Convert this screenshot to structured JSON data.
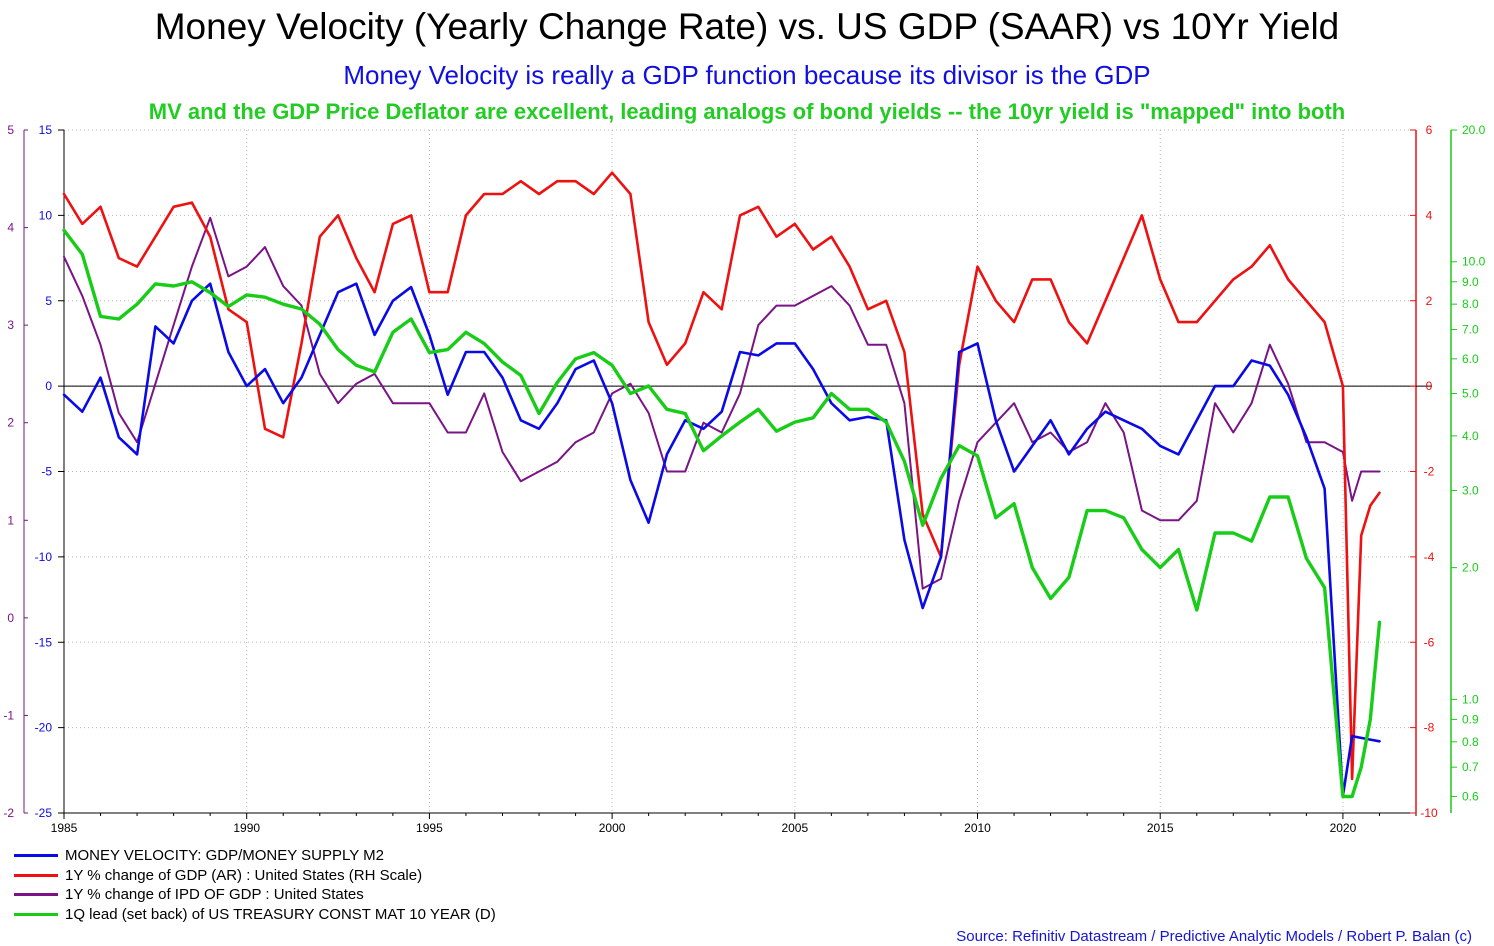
{
  "title": "Money Velocity (Yearly Change Rate) vs. US GDP (SAAR) vs 10Yr Yield",
  "subtitle": "Money Velocity is really a GDP function because its divisor is the GDP",
  "subtitle2": "MV and the GDP Price Deflator are excellent, leading analogs of bond yields -- the 10yr yield is \"mapped\" into both",
  "source": "Source: Refinitiv Datastream / Predictive Analytic Models / Robert P. Balan (c)",
  "colors": {
    "mv": "#0a0ae6",
    "gdp": "#ee1111",
    "ipd": "#7a1486",
    "yield": "#18cc18"
  },
  "chart_data": {
    "type": "line",
    "x_range": [
      1985,
      2022
    ],
    "x_ticks": [
      "1985",
      "1990",
      "1995",
      "2000",
      "2005",
      "2010",
      "2015",
      "2020"
    ],
    "axes": {
      "ipd_left": {
        "range": [
          -2,
          5
        ],
        "ticks": [
          "5",
          "4",
          "3",
          "2",
          "1",
          "0",
          "-1",
          "-2"
        ]
      },
      "mv_left": {
        "range": [
          -25,
          15
        ],
        "ticks": [
          "15",
          "10",
          "5",
          "0",
          "-5",
          "-10",
          "-15",
          "-20",
          "-25"
        ]
      },
      "gdp_right": {
        "range": [
          -10,
          6
        ],
        "ticks": [
          "6",
          "4",
          "2",
          "0",
          "-2",
          "-4",
          "-6",
          "-8",
          "-10"
        ]
      },
      "yield_right": {
        "scale": "log",
        "range": [
          0.55,
          20
        ],
        "ticks": [
          "20.0",
          "10.0",
          "9.0",
          "8.0",
          "7.0",
          "6.0",
          "5.0",
          "4.0",
          "3.0",
          "2.0",
          "1.0",
          "0.9",
          "0.8",
          "0.7",
          "0.6"
        ]
      }
    },
    "zero_line": true,
    "legend": [
      "MONEY VELOCITY: GDP/MONEY SUPPLY M2",
      "1Y % change of GDP (AR) : United States (RH Scale)",
      "1Y % change of IPD OF GDP : United States",
      "1Q lead (set back) of US TREASURY CONST MAT 10 YEAR (D)"
    ],
    "series": [
      {
        "key": "mv",
        "name": "MONEY VELOCITY: GDP/MONEY SUPPLY M2",
        "axis": "mv_left",
        "x": [
          1985,
          1985.5,
          1986,
          1986.5,
          1987,
          1987.5,
          1988,
          1988.5,
          1989,
          1989.5,
          1990,
          1990.5,
          1991,
          1991.5,
          1992,
          1992.5,
          1993,
          1993.5,
          1994,
          1994.5,
          1995,
          1995.5,
          1996,
          1996.5,
          1997,
          1997.5,
          1998,
          1998.5,
          1999,
          1999.5,
          2000,
          2000.5,
          2001,
          2001.5,
          2002,
          2002.5,
          2003,
          2003.5,
          2004,
          2004.5,
          2005,
          2005.5,
          2006,
          2006.5,
          2007,
          2007.5,
          2008,
          2008.5,
          2009,
          2009.5,
          2010,
          2010.5,
          2011,
          2011.5,
          2012,
          2012.5,
          2013,
          2013.5,
          2014,
          2014.5,
          2015,
          2015.5,
          2016,
          2016.5,
          2017,
          2017.5,
          2018,
          2018.5,
          2019,
          2019.5,
          2020,
          2020.25,
          2020.5,
          2020.75,
          2021
        ],
        "y": [
          -0.5,
          -1.5,
          0.5,
          -3,
          -4,
          3.5,
          2.5,
          5,
          6,
          2,
          0,
          1,
          -1,
          0.5,
          3,
          5.5,
          6,
          3,
          5,
          5.8,
          3,
          -0.5,
          2,
          2,
          0.5,
          -2,
          -2.5,
          -1,
          1,
          1.5,
          -1,
          -5.5,
          -8,
          -4,
          -2,
          -2.5,
          -1.5,
          2,
          1.8,
          2.5,
          2.5,
          1,
          -1,
          -2,
          -1.8,
          -2,
          -9,
          -13,
          -10,
          2,
          2.5,
          -2,
          -5,
          -3.5,
          -2,
          -4,
          -2.5,
          -1.5,
          -2,
          -2.5,
          -3.5,
          -4,
          -2,
          0,
          0,
          1.5,
          1.2,
          -0.5,
          -3,
          -6,
          -24,
          -20.5,
          -20.6,
          -20.7,
          -20.8
        ]
      },
      {
        "key": "gdp",
        "name": "1Y % change of GDP (AR) : United States (RH Scale)",
        "axis": "gdp_right",
        "x": [
          1985,
          1985.5,
          1986,
          1986.5,
          1987,
          1987.5,
          1988,
          1988.5,
          1989,
          1989.5,
          1990,
          1990.5,
          1991,
          1991.5,
          1992,
          1992.5,
          1993,
          1993.5,
          1994,
          1994.5,
          1995,
          1995.5,
          1996,
          1996.5,
          1997,
          1997.5,
          1998,
          1998.5,
          1999,
          1999.5,
          2000,
          2000.5,
          2001,
          2001.5,
          2002,
          2002.5,
          2003,
          2003.5,
          2004,
          2004.5,
          2005,
          2005.5,
          2006,
          2006.5,
          2007,
          2007.5,
          2008,
          2008.5,
          2009,
          2009.5,
          2010,
          2010.5,
          2011,
          2011.5,
          2012,
          2012.5,
          2013,
          2013.5,
          2014,
          2014.5,
          2015,
          2015.5,
          2016,
          2016.5,
          2017,
          2017.5,
          2018,
          2018.5,
          2019,
          2019.5,
          2020,
          2020.25,
          2020.5,
          2020.75,
          2021
        ],
        "y": [
          4.5,
          3.8,
          4.2,
          3,
          2.8,
          3.5,
          4.2,
          4.3,
          3.5,
          1.8,
          1.5,
          -1,
          -1.2,
          1,
          3.5,
          4,
          3,
          2.2,
          3.8,
          4,
          2.2,
          2.2,
          4,
          4.5,
          4.5,
          4.8,
          4.5,
          4.8,
          4.8,
          4.5,
          5,
          4.5,
          1.5,
          0.5,
          1,
          2.2,
          1.8,
          4,
          4.2,
          3.5,
          3.8,
          3.2,
          3.5,
          2.8,
          1.8,
          2,
          0.8,
          -3,
          -4,
          0.5,
          2.8,
          2,
          1.5,
          2.5,
          2.5,
          1.5,
          1,
          2,
          3,
          4,
          2.5,
          1.5,
          1.5,
          2,
          2.5,
          2.8,
          3.3,
          2.5,
          2,
          1.5,
          0,
          -9.2,
          -3.5,
          -2.8,
          -2.5
        ]
      },
      {
        "key": "ipd",
        "name": "1Y % change of IPD OF GDP : United States",
        "axis": "ipd_left",
        "x": [
          1985,
          1985.5,
          1986,
          1986.5,
          1987,
          1987.5,
          1988,
          1988.5,
          1989,
          1989.5,
          1990,
          1990.5,
          1991,
          1991.5,
          1992,
          1992.5,
          1993,
          1993.5,
          1994,
          1994.5,
          1995,
          1995.5,
          1996,
          1996.5,
          1997,
          1997.5,
          1998,
          1998.5,
          1999,
          1999.5,
          2000,
          2000.5,
          2001,
          2001.5,
          2002,
          2002.5,
          2003,
          2003.5,
          2004,
          2004.5,
          2005,
          2005.5,
          2006,
          2006.5,
          2007,
          2007.5,
          2008,
          2008.5,
          2009,
          2009.5,
          2010,
          2010.5,
          2011,
          2011.5,
          2012,
          2012.5,
          2013,
          2013.5,
          2014,
          2014.5,
          2015,
          2015.5,
          2016,
          2016.5,
          2017,
          2017.5,
          2018,
          2018.5,
          2019,
          2019.5,
          2020,
          2020.25,
          2020.5,
          2020.75,
          2021
        ],
        "y": [
          3.7,
          3.3,
          2.8,
          2.1,
          1.8,
          2.4,
          3,
          3.6,
          4.1,
          3.5,
          3.6,
          3.8,
          3.4,
          3.2,
          2.5,
          2.2,
          2.4,
          2.5,
          2.2,
          2.2,
          2.2,
          1.9,
          1.9,
          2.3,
          1.7,
          1.4,
          1.5,
          1.6,
          1.8,
          1.9,
          2.3,
          2.4,
          2.1,
          1.5,
          1.5,
          2,
          1.9,
          2.3,
          3,
          3.2,
          3.2,
          3.3,
          3.4,
          3.2,
          2.8,
          2.8,
          2.2,
          0.3,
          0.4,
          1.2,
          1.8,
          2,
          2.2,
          1.8,
          1.9,
          1.7,
          1.8,
          2.2,
          1.9,
          1.1,
          1.0,
          1.0,
          1.2,
          2.2,
          1.9,
          2.2,
          2.8,
          2.4,
          1.8,
          1.8,
          1.7,
          1.2,
          1.5,
          1.5,
          1.5
        ]
      },
      {
        "key": "yield",
        "name": "1Q lead (set back) of US TREASURY CONST MAT 10 YEAR (D)",
        "axis": "yield_right",
        "x": [
          1985,
          1985.5,
          1986,
          1986.5,
          1987,
          1987.5,
          1988,
          1988.5,
          1989,
          1989.5,
          1990,
          1990.5,
          1991,
          1991.5,
          1992,
          1992.5,
          1993,
          1993.5,
          1994,
          1994.5,
          1995,
          1995.5,
          1996,
          1996.5,
          1997,
          1997.5,
          1998,
          1998.5,
          1999,
          1999.5,
          2000,
          2000.5,
          2001,
          2001.5,
          2002,
          2002.5,
          2003,
          2003.5,
          2004,
          2004.5,
          2005,
          2005.5,
          2006,
          2006.5,
          2007,
          2007.5,
          2008,
          2008.5,
          2009,
          2009.5,
          2010,
          2010.5,
          2011,
          2011.5,
          2012,
          2012.5,
          2013,
          2013.5,
          2014,
          2014.5,
          2015,
          2015.5,
          2016,
          2016.5,
          2017,
          2017.5,
          2018,
          2018.5,
          2019,
          2019.5,
          2020,
          2020.25,
          2020.5,
          2020.75,
          2021
        ],
        "y": [
          11.8,
          10.4,
          7.5,
          7.4,
          8.0,
          8.9,
          8.8,
          9.0,
          8.5,
          7.9,
          8.4,
          8.3,
          8.0,
          7.8,
          7.2,
          6.3,
          5.8,
          5.6,
          6.9,
          7.4,
          6.2,
          6.3,
          6.9,
          6.5,
          5.9,
          5.5,
          4.5,
          5.3,
          6.0,
          6.2,
          5.8,
          5.0,
          5.2,
          4.6,
          4.5,
          3.7,
          4.0,
          4.3,
          4.6,
          4.1,
          4.3,
          4.4,
          5.0,
          4.6,
          4.6,
          4.3,
          3.5,
          2.5,
          3.2,
          3.8,
          3.6,
          2.6,
          2.8,
          2.0,
          1.7,
          1.9,
          2.7,
          2.7,
          2.6,
          2.2,
          2.0,
          2.2,
          1.6,
          2.4,
          2.4,
          2.3,
          2.9,
          2.9,
          2.1,
          1.8,
          0.6,
          0.6,
          0.7,
          0.9,
          1.5
        ]
      }
    ]
  }
}
